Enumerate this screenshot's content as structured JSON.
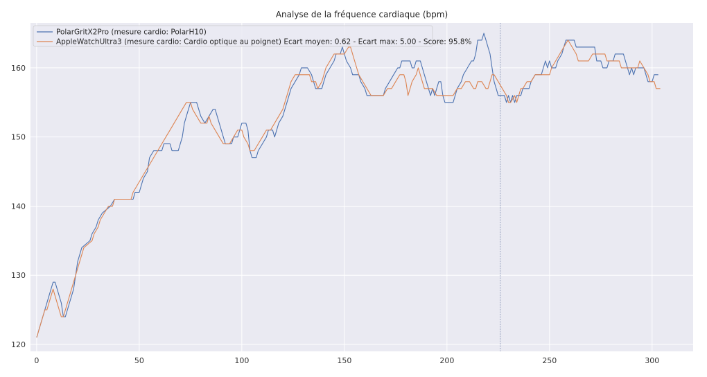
{
  "chart_data": {
    "type": "line",
    "title": "Analyse de la fréquence cardiaque (bpm)",
    "xlabel": "",
    "ylabel": "",
    "xlim": [
      -3,
      320
    ],
    "ylim": [
      119,
      166.5
    ],
    "x_ticks": [
      0,
      50,
      100,
      150,
      200,
      250,
      300
    ],
    "y_ticks": [
      120,
      130,
      140,
      150,
      160
    ],
    "grid": true,
    "legend_position": "top-left",
    "vertical_line_x": 226,
    "background_color": "#eaeaf2",
    "series": [
      {
        "name": "PolarGritX2Pro (mesure cardio: PolarH10)",
        "color": "#4c72b0",
        "points": [
          [
            0,
            121
          ],
          [
            4,
            125
          ],
          [
            6,
            127
          ],
          [
            7,
            128
          ],
          [
            8,
            129
          ],
          [
            9,
            129
          ],
          [
            12,
            126
          ],
          [
            13,
            124
          ],
          [
            14,
            124
          ],
          [
            16,
            126
          ],
          [
            18,
            128
          ],
          [
            19,
            130
          ],
          [
            20,
            132
          ],
          [
            22,
            134
          ],
          [
            26,
            135
          ],
          [
            27,
            136
          ],
          [
            29,
            137
          ],
          [
            30,
            138
          ],
          [
            32,
            139
          ],
          [
            36,
            140
          ],
          [
            38,
            141
          ],
          [
            47,
            141
          ],
          [
            48,
            142
          ],
          [
            50,
            142
          ],
          [
            52,
            144
          ],
          [
            54,
            145
          ],
          [
            55,
            147
          ],
          [
            57,
            148
          ],
          [
            61,
            148
          ],
          [
            62,
            149
          ],
          [
            65,
            149
          ],
          [
            66,
            148
          ],
          [
            69,
            148
          ],
          [
            71,
            150
          ],
          [
            72,
            152
          ],
          [
            73,
            153
          ],
          [
            75,
            155
          ],
          [
            78,
            155
          ],
          [
            80,
            153
          ],
          [
            82,
            152
          ],
          [
            84,
            153
          ],
          [
            86,
            154
          ],
          [
            87,
            154
          ],
          [
            89,
            152
          ],
          [
            91,
            150
          ],
          [
            92,
            149
          ],
          [
            95,
            149
          ],
          [
            96,
            150
          ],
          [
            98,
            150
          ],
          [
            99,
            151
          ],
          [
            100,
            152
          ],
          [
            102,
            152
          ],
          [
            103,
            151
          ],
          [
            104,
            148
          ],
          [
            105,
            147
          ],
          [
            107,
            147
          ],
          [
            108,
            148
          ],
          [
            110,
            149
          ],
          [
            112,
            150
          ],
          [
            113,
            151
          ],
          [
            115,
            151
          ],
          [
            116,
            150
          ],
          [
            117,
            151
          ],
          [
            118,
            152
          ],
          [
            120,
            153
          ],
          [
            122,
            155
          ],
          [
            124,
            157
          ],
          [
            126,
            158
          ],
          [
            128,
            159
          ],
          [
            129,
            160
          ],
          [
            132,
            160
          ],
          [
            134,
            159
          ],
          [
            135,
            158
          ],
          [
            136,
            157
          ],
          [
            139,
            157
          ],
          [
            140,
            158
          ],
          [
            141,
            159
          ],
          [
            143,
            160
          ],
          [
            145,
            161
          ],
          [
            146,
            162
          ],
          [
            148,
            162
          ],
          [
            149,
            163
          ],
          [
            150,
            162
          ],
          [
            151,
            161
          ],
          [
            153,
            160
          ],
          [
            154,
            159
          ],
          [
            157,
            159
          ],
          [
            158,
            158
          ],
          [
            160,
            157
          ],
          [
            161,
            156
          ],
          [
            169,
            156
          ],
          [
            170,
            157
          ],
          [
            172,
            158
          ],
          [
            174,
            159
          ],
          [
            176,
            160
          ],
          [
            177,
            160
          ],
          [
            178,
            161
          ],
          [
            182,
            161
          ],
          [
            183,
            160
          ],
          [
            184,
            160
          ],
          [
            185,
            161
          ],
          [
            187,
            161
          ],
          [
            188,
            160
          ],
          [
            190,
            158
          ],
          [
            191,
            157
          ],
          [
            192,
            156
          ],
          [
            193,
            157
          ],
          [
            194,
            156
          ],
          [
            195,
            157
          ],
          [
            196,
            158
          ],
          [
            197,
            158
          ],
          [
            198,
            156
          ],
          [
            199,
            155
          ],
          [
            203,
            155
          ],
          [
            204,
            156
          ],
          [
            205,
            157
          ],
          [
            207,
            158
          ],
          [
            208,
            159
          ],
          [
            210,
            160
          ],
          [
            212,
            161
          ],
          [
            213,
            161
          ],
          [
            214,
            162
          ],
          [
            215,
            164
          ],
          [
            217,
            164
          ],
          [
            218,
            165
          ],
          [
            219,
            164
          ],
          [
            220,
            163
          ],
          [
            221,
            162
          ],
          [
            222,
            160
          ],
          [
            223,
            158
          ],
          [
            224,
            157
          ],
          [
            225,
            156
          ],
          [
            228,
            156
          ],
          [
            229,
            155
          ],
          [
            230,
            156
          ],
          [
            231,
            155
          ],
          [
            232,
            156
          ],
          [
            233,
            155
          ],
          [
            234,
            156
          ],
          [
            236,
            156
          ],
          [
            237,
            157
          ],
          [
            240,
            157
          ],
          [
            241,
            158
          ],
          [
            243,
            159
          ],
          [
            246,
            159
          ],
          [
            247,
            160
          ],
          [
            248,
            161
          ],
          [
            249,
            160
          ],
          [
            250,
            161
          ],
          [
            251,
            160
          ],
          [
            253,
            160
          ],
          [
            254,
            161
          ],
          [
            256,
            162
          ],
          [
            257,
            163
          ],
          [
            258,
            164
          ],
          [
            262,
            164
          ],
          [
            263,
            163
          ],
          [
            272,
            163
          ],
          [
            273,
            161
          ],
          [
            275,
            161
          ],
          [
            276,
            160
          ],
          [
            278,
            160
          ],
          [
            279,
            161
          ],
          [
            281,
            161
          ],
          [
            282,
            162
          ],
          [
            286,
            162
          ],
          [
            287,
            161
          ],
          [
            288,
            160
          ],
          [
            289,
            159
          ],
          [
            290,
            160
          ],
          [
            291,
            159
          ],
          [
            292,
            160
          ],
          [
            296,
            160
          ],
          [
            297,
            159
          ],
          [
            298,
            158
          ],
          [
            300,
            158
          ],
          [
            301,
            159
          ],
          [
            303,
            159
          ]
        ]
      },
      {
        "name": "AppleWatchUltra3 (mesure cardio: Cardio optique au poignet) Ecart moyen: 0.62 - Ecart max: 5.00 - Score: 95.8%",
        "color": "#dd8452",
        "points": [
          [
            0,
            121
          ],
          [
            4,
            125
          ],
          [
            5,
            125
          ],
          [
            7,
            127
          ],
          [
            8,
            128
          ],
          [
            9,
            127
          ],
          [
            11,
            125
          ],
          [
            12,
            124
          ],
          [
            13,
            124
          ],
          [
            15,
            126
          ],
          [
            17,
            128
          ],
          [
            19,
            130
          ],
          [
            21,
            132
          ],
          [
            22,
            133
          ],
          [
            23,
            134
          ],
          [
            27,
            135
          ],
          [
            28,
            136
          ],
          [
            30,
            137
          ],
          [
            31,
            138
          ],
          [
            33,
            139
          ],
          [
            35,
            140
          ],
          [
            37,
            140
          ],
          [
            38,
            141
          ],
          [
            46,
            141
          ],
          [
            47,
            142
          ],
          [
            49,
            143
          ],
          [
            51,
            144
          ],
          [
            53,
            145
          ],
          [
            55,
            146
          ],
          [
            57,
            147
          ],
          [
            59,
            148
          ],
          [
            61,
            149
          ],
          [
            63,
            150
          ],
          [
            65,
            151
          ],
          [
            67,
            152
          ],
          [
            69,
            153
          ],
          [
            71,
            154
          ],
          [
            73,
            155
          ],
          [
            75,
            155
          ],
          [
            76,
            154
          ],
          [
            78,
            153
          ],
          [
            80,
            152
          ],
          [
            83,
            152
          ],
          [
            84,
            153
          ],
          [
            85,
            152
          ],
          [
            87,
            151
          ],
          [
            89,
            150
          ],
          [
            91,
            149
          ],
          [
            94,
            149
          ],
          [
            96,
            150
          ],
          [
            98,
            151
          ],
          [
            100,
            151
          ],
          [
            101,
            150
          ],
          [
            103,
            149
          ],
          [
            104,
            148
          ],
          [
            106,
            148
          ],
          [
            108,
            149
          ],
          [
            110,
            150
          ],
          [
            112,
            151
          ],
          [
            114,
            151
          ],
          [
            116,
            152
          ],
          [
            118,
            153
          ],
          [
            120,
            154
          ],
          [
            122,
            156
          ],
          [
            124,
            158
          ],
          [
            126,
            159
          ],
          [
            133,
            159
          ],
          [
            134,
            158
          ],
          [
            136,
            158
          ],
          [
            137,
            157
          ],
          [
            139,
            158
          ],
          [
            141,
            160
          ],
          [
            143,
            161
          ],
          [
            145,
            162
          ],
          [
            150,
            162
          ],
          [
            152,
            163
          ],
          [
            153,
            163
          ],
          [
            155,
            161
          ],
          [
            157,
            159
          ],
          [
            159,
            158
          ],
          [
            161,
            157
          ],
          [
            163,
            156
          ],
          [
            169,
            156
          ],
          [
            171,
            157
          ],
          [
            173,
            157
          ],
          [
            175,
            158
          ],
          [
            177,
            159
          ],
          [
            179,
            159
          ],
          [
            180,
            158
          ],
          [
            181,
            156
          ],
          [
            182,
            157
          ],
          [
            183,
            158
          ],
          [
            185,
            159
          ],
          [
            186,
            160
          ],
          [
            188,
            158
          ],
          [
            189,
            157
          ],
          [
            193,
            157
          ],
          [
            195,
            156
          ],
          [
            203,
            156
          ],
          [
            205,
            157
          ],
          [
            207,
            157
          ],
          [
            209,
            158
          ],
          [
            211,
            158
          ],
          [
            213,
            157
          ],
          [
            214,
            157
          ],
          [
            215,
            158
          ],
          [
            217,
            158
          ],
          [
            219,
            157
          ],
          [
            220,
            157
          ],
          [
            221,
            158
          ],
          [
            222,
            159
          ],
          [
            223,
            159
          ],
          [
            225,
            158
          ],
          [
            227,
            157
          ],
          [
            229,
            156
          ],
          [
            230,
            155
          ],
          [
            231,
            155
          ],
          [
            233,
            156
          ],
          [
            234,
            155
          ],
          [
            235,
            156
          ],
          [
            236,
            157
          ],
          [
            237,
            157
          ],
          [
            239,
            158
          ],
          [
            241,
            158
          ],
          [
            243,
            159
          ],
          [
            245,
            159
          ],
          [
            250,
            159
          ],
          [
            251,
            160
          ],
          [
            253,
            161
          ],
          [
            255,
            162
          ],
          [
            257,
            163
          ],
          [
            259,
            164
          ],
          [
            261,
            163
          ],
          [
            263,
            162
          ],
          [
            264,
            161
          ],
          [
            269,
            161
          ],
          [
            271,
            162
          ],
          [
            277,
            162
          ],
          [
            278,
            161
          ],
          [
            284,
            161
          ],
          [
            285,
            160
          ],
          [
            293,
            160
          ],
          [
            294,
            161
          ],
          [
            296,
            160
          ],
          [
            298,
            159
          ],
          [
            299,
            158
          ],
          [
            301,
            158
          ],
          [
            302,
            157
          ],
          [
            304,
            157
          ]
        ]
      }
    ]
  }
}
